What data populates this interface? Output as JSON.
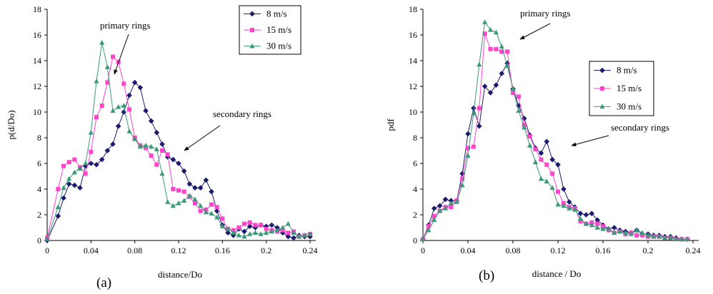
{
  "chart_data": [
    {
      "type": "line",
      "panel_label": "(a)",
      "xlabel": "distance/Do",
      "ylabel": "p(d/Do)",
      "xlim": [
        0,
        0.24
      ],
      "ylim": [
        0,
        18
      ],
      "xticks": [
        "0",
        "0.04",
        "0.08",
        "0.12",
        "0.16",
        "0.2",
        "0.24"
      ],
      "yticks": [
        "0",
        "2",
        "4",
        "6",
        "8",
        "10",
        "12",
        "14",
        "16",
        "18"
      ],
      "grid": false,
      "legend_position": "top-right",
      "annotations": [
        "primary rings",
        "secondary rings"
      ],
      "series": [
        {
          "name": "8 m/s",
          "color": "#1a1a6e",
          "marker": "diamond",
          "x": [
            0,
            0.01,
            0.015,
            0.02,
            0.025,
            0.03,
            0.035,
            0.04,
            0.045,
            0.05,
            0.055,
            0.06,
            0.065,
            0.07,
            0.075,
            0.08,
            0.085,
            0.09,
            0.095,
            0.1,
            0.105,
            0.11,
            0.115,
            0.12,
            0.125,
            0.13,
            0.135,
            0.14,
            0.145,
            0.15,
            0.155,
            0.16,
            0.165,
            0.17,
            0.175,
            0.18,
            0.185,
            0.19,
            0.195,
            0.2,
            0.205,
            0.21,
            0.215,
            0.22,
            0.225,
            0.23,
            0.235,
            0.24
          ],
          "y": [
            0,
            1.9,
            3.3,
            4.4,
            4.3,
            4.1,
            5.8,
            6,
            5.9,
            6.3,
            7,
            7.5,
            8.9,
            10,
            11.3,
            12.3,
            11.9,
            10.1,
            9.3,
            8.4,
            7.5,
            6.5,
            6.3,
            6,
            5.4,
            4.4,
            4.1,
            4.1,
            4.7,
            3.8,
            2.3,
            1.2,
            0.6,
            0.4,
            0.9,
            0.7,
            1.1,
            1,
            1.2,
            1.1,
            1.2,
            1,
            0.6,
            0.3,
            0.2,
            0.4,
            0.3,
            0.3
          ]
        },
        {
          "name": "15 m/s",
          "color": "#ff44cc",
          "marker": "square",
          "x": [
            0,
            0.01,
            0.015,
            0.02,
            0.025,
            0.03,
            0.035,
            0.04,
            0.045,
            0.05,
            0.055,
            0.06,
            0.065,
            0.07,
            0.075,
            0.08,
            0.085,
            0.09,
            0.095,
            0.1,
            0.105,
            0.11,
            0.115,
            0.12,
            0.125,
            0.13,
            0.135,
            0.14,
            0.145,
            0.15,
            0.155,
            0.16,
            0.165,
            0.17,
            0.175,
            0.18,
            0.185,
            0.19,
            0.195,
            0.2,
            0.205,
            0.21,
            0.215,
            0.22,
            0.225,
            0.23,
            0.235,
            0.24
          ],
          "y": [
            0.2,
            4,
            5.8,
            6.1,
            6.3,
            5.7,
            5.2,
            6.9,
            9.6,
            10.5,
            12.3,
            14.3,
            13.9,
            12.2,
            10.2,
            8,
            7.4,
            7.2,
            6.6,
            5.9,
            7,
            6.7,
            4,
            3.9,
            3.8,
            3.4,
            2.9,
            2.3,
            2.4,
            2.8,
            2.6,
            1.7,
            0.9,
            0.8,
            1,
            1.3,
            1.4,
            1.2,
            1.2,
            0.9,
            0.8,
            0.7,
            0.8,
            0.6,
            0.7,
            0.3,
            0.4,
            0.5
          ]
        },
        {
          "name": "30 m/s",
          "color": "#3a9a78",
          "marker": "triangle",
          "x": [
            0,
            0.01,
            0.015,
            0.02,
            0.025,
            0.03,
            0.035,
            0.04,
            0.045,
            0.05,
            0.055,
            0.06,
            0.065,
            0.07,
            0.075,
            0.08,
            0.085,
            0.09,
            0.095,
            0.1,
            0.105,
            0.11,
            0.115,
            0.12,
            0.125,
            0.13,
            0.135,
            0.14,
            0.145,
            0.15,
            0.155,
            0.16,
            0.165,
            0.17,
            0.175,
            0.18,
            0.185,
            0.19,
            0.195,
            0.2,
            0.205,
            0.21,
            0.215,
            0.22,
            0.225,
            0.23,
            0.235,
            0.24
          ],
          "y": [
            0.1,
            2.6,
            4.1,
            4.8,
            5.3,
            5.6,
            6,
            8.4,
            12.4,
            15.4,
            13.5,
            10.1,
            10.4,
            10.5,
            8.5,
            7.9,
            7.3,
            7.4,
            7.3,
            7.1,
            5.2,
            3,
            2.7,
            2.9,
            3.1,
            3.5,
            3.2,
            2.7,
            2.2,
            2.1,
            1.8,
            1.1,
            0.9,
            0.6,
            0.4,
            0.3,
            0.5,
            0.6,
            0.5,
            0.6,
            0.7,
            0.8,
            1,
            1.3,
            0.6,
            0.3,
            0.4,
            0.5
          ]
        }
      ]
    },
    {
      "type": "line",
      "panel_label": "(b)",
      "xlabel": "distance / Do",
      "ylabel": "pdf",
      "xlim": [
        0,
        0.24
      ],
      "ylim": [
        0,
        18
      ],
      "xticks": [
        "0",
        "0.04",
        "0.08",
        "0.12",
        "0.16",
        "0.2",
        "0.24"
      ],
      "yticks": [
        "0",
        "2",
        "4",
        "6",
        "8",
        "10",
        "12",
        "14",
        "16",
        "18"
      ],
      "grid": false,
      "legend_position": "top-right",
      "annotations": [
        "primary rings",
        "secondary rings"
      ],
      "series": [
        {
          "name": "8 m/s",
          "color": "#1a1a6e",
          "marker": "diamond",
          "x": [
            0,
            0.005,
            0.01,
            0.015,
            0.02,
            0.025,
            0.03,
            0.035,
            0.04,
            0.045,
            0.05,
            0.055,
            0.06,
            0.065,
            0.07,
            0.075,
            0.08,
            0.085,
            0.09,
            0.095,
            0.1,
            0.105,
            0.11,
            0.115,
            0.12,
            0.125,
            0.13,
            0.135,
            0.14,
            0.145,
            0.15,
            0.155,
            0.16,
            0.165,
            0.17,
            0.175,
            0.18,
            0.185,
            0.19,
            0.195,
            0.2,
            0.205,
            0.21,
            0.215,
            0.22,
            0.225,
            0.23,
            0.235
          ],
          "y": [
            0.1,
            1.2,
            2.5,
            2.7,
            3.2,
            3.1,
            3.1,
            5.2,
            8.3,
            10.3,
            8.9,
            12,
            11.5,
            12.1,
            13,
            13.8,
            11.8,
            10.5,
            9.5,
            8.2,
            7.2,
            6.8,
            7.7,
            6.3,
            5.9,
            4,
            3,
            2.6,
            2.1,
            2,
            2.1,
            1.6,
            1.2,
            0.9,
            1,
            0.8,
            0.7,
            0.6,
            0.8,
            0.5,
            0.5,
            0.4,
            0.4,
            0.3,
            0.3,
            0.2,
            0.1,
            0.1
          ]
        },
        {
          "name": "15 m/s",
          "color": "#ff44cc",
          "marker": "square",
          "x": [
            0,
            0.005,
            0.01,
            0.015,
            0.02,
            0.025,
            0.03,
            0.035,
            0.04,
            0.045,
            0.05,
            0.055,
            0.06,
            0.065,
            0.07,
            0.075,
            0.08,
            0.085,
            0.09,
            0.095,
            0.1,
            0.105,
            0.11,
            0.115,
            0.12,
            0.125,
            0.13,
            0.135,
            0.14,
            0.145,
            0.15,
            0.155,
            0.16,
            0.165,
            0.17,
            0.175,
            0.18,
            0.185,
            0.19,
            0.195,
            0.2,
            0.205,
            0.21,
            0.215,
            0.22,
            0.225,
            0.23,
            0.235
          ],
          "y": [
            0.1,
            1.1,
            1.9,
            2.3,
            2.6,
            2.6,
            3.1,
            4.8,
            7.2,
            7.3,
            10.3,
            16.1,
            14.9,
            14.9,
            14.7,
            14.7,
            11.5,
            11.2,
            9,
            8.1,
            7.1,
            6.3,
            5.9,
            5.2,
            3.8,
            2.9,
            2.6,
            2.5,
            1.5,
            1.3,
            1.4,
            1.3,
            1.1,
            0.8,
            0.6,
            0.7,
            0.5,
            0.6,
            0.4,
            0.4,
            0.3,
            0.3,
            0.3,
            0.2,
            0.2,
            0.1,
            0.1,
            0.1
          ]
        },
        {
          "name": "30 m/s",
          "color": "#3a9a78",
          "marker": "triangle",
          "x": [
            0,
            0.005,
            0.01,
            0.015,
            0.02,
            0.025,
            0.03,
            0.035,
            0.04,
            0.045,
            0.05,
            0.055,
            0.06,
            0.065,
            0.07,
            0.075,
            0.08,
            0.085,
            0.09,
            0.095,
            0.1,
            0.105,
            0.11,
            0.115,
            0.12,
            0.125,
            0.13,
            0.135,
            0.14,
            0.145,
            0.15,
            0.155,
            0.16,
            0.165,
            0.17,
            0.175,
            0.18,
            0.185,
            0.19,
            0.195,
            0.2,
            0.205,
            0.21,
            0.215,
            0.22,
            0.225,
            0.23,
            0.235
          ],
          "y": [
            0.1,
            0.8,
            1.6,
            2.3,
            2.5,
            2.9,
            3,
            4.3,
            6.6,
            9.9,
            13.7,
            17,
            16.4,
            16.2,
            15.1,
            13.6,
            11.8,
            10.1,
            8.8,
            7.4,
            6.1,
            4.8,
            4.6,
            4.1,
            2.8,
            2.7,
            2.5,
            2.4,
            1.7,
            1.3,
            1.2,
            1,
            0.9,
            0.9,
            0.6,
            0.7,
            0.6,
            0.5,
            0.8,
            0.6,
            0.4,
            0.3,
            0.3,
            0.2,
            0.2,
            0.1,
            0.1,
            0.1
          ]
        }
      ]
    }
  ]
}
